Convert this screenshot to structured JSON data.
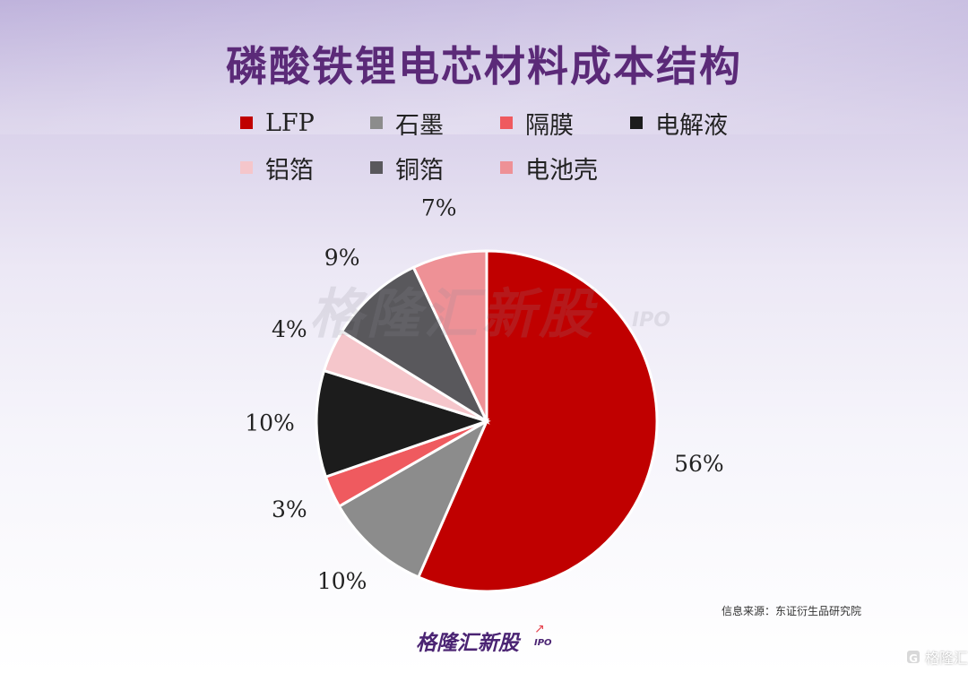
{
  "title": "磷酸铁锂电芯材料成本结构",
  "chart_data": {
    "type": "pie",
    "title": "磷酸铁锂电芯材料成本结构",
    "legend_position": "top",
    "slices": [
      {
        "name": "LFP",
        "value": 56,
        "label": "56%",
        "color": "#c00000"
      },
      {
        "name": "石墨",
        "value": 10,
        "label": "10%",
        "color": "#8c8c8c"
      },
      {
        "name": "隔膜",
        "value": 3,
        "label": "3%",
        "color": "#ef5a5f"
      },
      {
        "name": "电解液",
        "value": 10,
        "label": "10%",
        "color": "#1c1c1c"
      },
      {
        "name": "铝箔",
        "value": 4,
        "label": "4%",
        "color": "#f5c6cb"
      },
      {
        "name": "铜箔",
        "value": 9,
        "label": "9%",
        "color": "#59585c"
      },
      {
        "name": "电池壳",
        "value": 7,
        "label": "7%",
        "color": "#ee9196"
      }
    ]
  },
  "legend": [
    {
      "name": "LFP",
      "color": "#c00000"
    },
    {
      "name": "石墨",
      "color": "#8c8c8c"
    },
    {
      "name": "隔膜",
      "color": "#ef5a5f"
    },
    {
      "name": "电解液",
      "color": "#1c1c1c"
    },
    {
      "name": "铝箔",
      "color": "#f5c6cb"
    },
    {
      "name": "铜箔",
      "color": "#59585c"
    },
    {
      "name": "电池壳",
      "color": "#ee9196"
    }
  ],
  "watermark": {
    "text": "格隆汇新股",
    "sub": "IPO"
  },
  "source": "信息来源：东证衍生品研究院",
  "footer": {
    "logo": "格隆汇新股",
    "sub": "IPO"
  },
  "corner": {
    "icon": "G",
    "text": "格隆汇"
  }
}
